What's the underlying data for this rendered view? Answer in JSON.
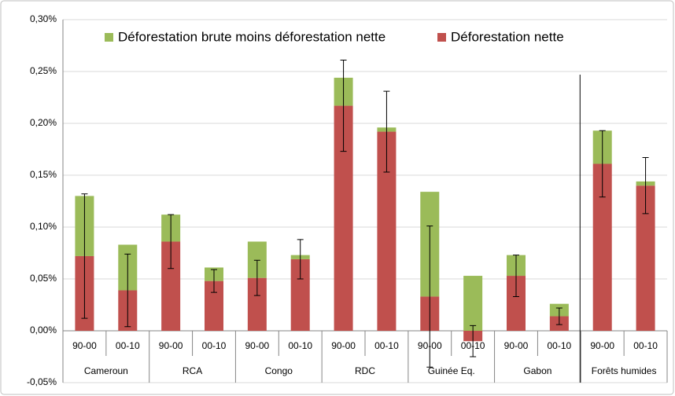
{
  "chart_data": {
    "type": "stacked-bar",
    "categories": [
      "90-00",
      "00-10",
      "90-00",
      "00-10",
      "90-00",
      "00-10",
      "90-00",
      "00-10",
      "90-00",
      "00-10",
      "90-00",
      "00-10",
      "90-00",
      "00-10"
    ],
    "groups": [
      "Cameroun",
      "RCA",
      "Congo",
      "RDC",
      "Guinée Eq.",
      "Gabon",
      "Forêts humides"
    ],
    "series": [
      {
        "name": "Déforestation nette",
        "color": "#c0504d",
        "values": [
          0.072,
          0.039,
          0.086,
          0.048,
          0.051,
          0.069,
          0.217,
          0.192,
          0.033,
          -0.01,
          0.053,
          0.014,
          0.161,
          0.14
        ],
        "errors": [
          0.06,
          0.035,
          0.026,
          0.011,
          0.017,
          0.019,
          0.044,
          0.039,
          0.068,
          0.015,
          0.02,
          0.008,
          0.032,
          0.027
        ]
      },
      {
        "name": "Déforestation brute moins déforestation nette",
        "color": "#9bbb59",
        "values": [
          0.058,
          0.044,
          0.026,
          0.013,
          0.035,
          0.004,
          0.027,
          0.004,
          0.101,
          0.053,
          0.02,
          0.012,
          0.032,
          0.004
        ]
      }
    ],
    "ylim": [
      -0.05,
      0.3
    ],
    "yticks": [
      {
        "value": -0.05,
        "label": "-0,05%"
      },
      {
        "value": 0,
        "label": "0,00%"
      },
      {
        "value": 0.05,
        "label": "0,05%"
      },
      {
        "value": 0.1,
        "label": "0,10%"
      },
      {
        "value": 0.15,
        "label": "0,15%"
      },
      {
        "value": 0.2,
        "label": "0,20%"
      },
      {
        "value": 0.25,
        "label": "0,25%"
      },
      {
        "value": 0.3,
        "label": "0,30%"
      }
    ],
    "grid": true
  }
}
